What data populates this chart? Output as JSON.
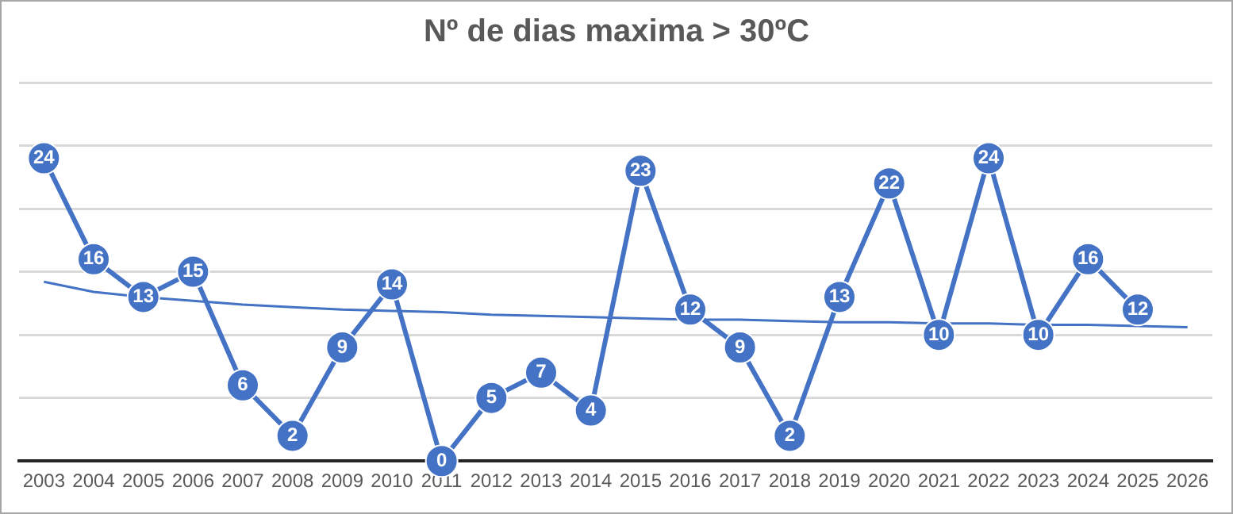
{
  "chart_data": {
    "type": "line",
    "title": "Nº de dias maxima > 30ºC",
    "categories": [
      "2003",
      "2004",
      "2005",
      "2006",
      "2007",
      "2008",
      "2009",
      "2010",
      "2011",
      "2012",
      "2013",
      "2014",
      "2015",
      "2016",
      "2017",
      "2018",
      "2019",
      "2020",
      "2021",
      "2022",
      "2023",
      "2024",
      "2025",
      "2026"
    ],
    "series": [
      {
        "color": "#4472c4",
        "marker": "circle",
        "values": [
          24,
          16,
          13,
          15,
          6,
          2,
          9,
          14,
          0,
          5,
          7,
          4,
          23,
          12,
          9,
          2,
          13,
          22,
          10,
          24,
          10,
          16,
          12,
          null
        ],
        "value_labels": [
          "24",
          "16",
          "13",
          "15",
          "6",
          "2",
          "9",
          "14",
          "0",
          "5",
          "7",
          "4",
          "23",
          "12",
          "9",
          "2",
          "13",
          "22",
          "10",
          "24",
          "10",
          "16",
          "12",
          null
        ]
      },
      {
        "color": "#4472c4",
        "marker": "none",
        "values": [
          14.2,
          13.4,
          13.0,
          12.7,
          12.4,
          12.2,
          12.0,
          11.9,
          11.8,
          11.6,
          11.5,
          11.4,
          11.3,
          11.2,
          11.2,
          11.1,
          11.0,
          11.0,
          10.9,
          10.9,
          10.8,
          10.8,
          10.7,
          10.6
        ]
      }
    ],
    "ylim": [
      0,
      30
    ],
    "yticks": [
      {
        "value": 0,
        "label": null
      },
      {
        "value": 5,
        "label": null
      },
      {
        "value": 10,
        "label": null
      },
      {
        "value": 15,
        "label": null
      },
      {
        "value": 20,
        "label": null
      },
      {
        "value": 25,
        "label": null
      },
      {
        "value": 30,
        "label": null
      }
    ],
    "grid": "y",
    "tick_labels": "x",
    "line_style": "solid"
  }
}
